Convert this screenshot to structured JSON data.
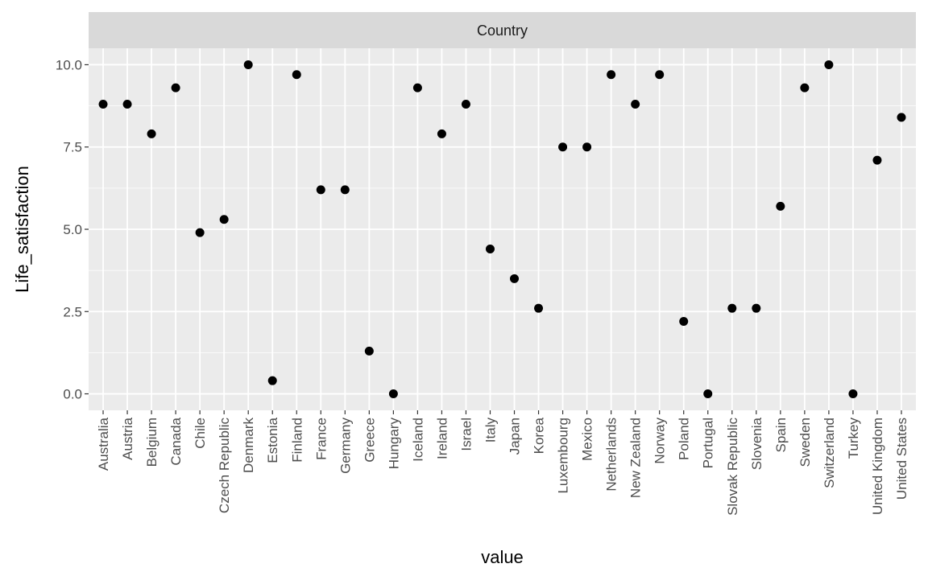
{
  "chart_data": {
    "type": "scatter",
    "facet_label": "Country",
    "xlabel": "value",
    "ylabel": "Life_satisfaction",
    "ylim": [
      -0.5,
      10.5
    ],
    "yticks": [
      "0.0",
      "2.5",
      "5.0",
      "7.5",
      "10.0"
    ],
    "ytick_values": [
      0,
      2.5,
      5,
      7.5,
      10
    ],
    "grid": true,
    "colors": {
      "panel": "#ebebeb",
      "strip": "#d9d9d9",
      "grid": "#ffffff",
      "point": "#000000",
      "tick_text": "#4d4d4d"
    },
    "categories": [
      "Australia",
      "Austria",
      "Belgium",
      "Canada",
      "Chile",
      "Czech Republic",
      "Denmark",
      "Estonia",
      "Finland",
      "France",
      "Germany",
      "Greece",
      "Hungary",
      "Iceland",
      "Ireland",
      "Israel",
      "Italy",
      "Japan",
      "Korea",
      "Luxembourg",
      "Mexico",
      "Netherlands",
      "New Zealand",
      "Norway",
      "Poland",
      "Portugal",
      "Slovak Republic",
      "Slovenia",
      "Spain",
      "Sweden",
      "Switzerland",
      "Turkey",
      "United Kingdom",
      "United States"
    ],
    "values": [
      8.8,
      8.8,
      7.9,
      9.3,
      4.9,
      5.3,
      10.0,
      0.4,
      9.7,
      6.2,
      6.2,
      1.3,
      0.0,
      9.3,
      7.9,
      8.8,
      4.4,
      3.5,
      2.6,
      7.5,
      7.5,
      9.7,
      8.8,
      9.7,
      2.2,
      0.0,
      2.6,
      2.6,
      5.7,
      9.3,
      10.0,
      0.0,
      7.1,
      8.4
    ]
  }
}
